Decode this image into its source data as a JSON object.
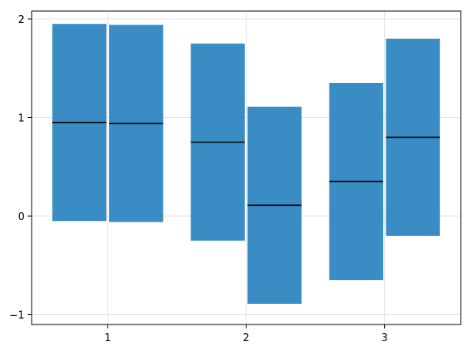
{
  "chart_data": {
    "type": "crossbar",
    "x": [
      1,
      2,
      3
    ],
    "xticks": [
      "1",
      "2",
      "3"
    ],
    "yticks": [
      "−1",
      "0",
      "1",
      "2"
    ],
    "ytick_values": [
      -1,
      0,
      1,
      2
    ],
    "xlim": [
      0.45,
      3.55
    ],
    "ylim": [
      -1.1,
      2.08
    ],
    "grid": true,
    "bar_color": "#2e86c1",
    "median_color": "#000000",
    "groups": [
      {
        "x": 1,
        "boxes": [
          {
            "low": -0.05,
            "mid": 0.95,
            "high": 1.95
          },
          {
            "low": -0.06,
            "mid": 0.94,
            "high": 1.94
          }
        ]
      },
      {
        "x": 2,
        "boxes": [
          {
            "low": -0.25,
            "mid": 0.75,
            "high": 1.75
          },
          {
            "low": -0.89,
            "mid": 0.11,
            "high": 1.11
          }
        ]
      },
      {
        "x": 3,
        "boxes": [
          {
            "low": -0.65,
            "mid": 0.35,
            "high": 1.35
          },
          {
            "low": -0.2,
            "mid": 0.8,
            "high": 1.8
          }
        ]
      }
    ]
  }
}
